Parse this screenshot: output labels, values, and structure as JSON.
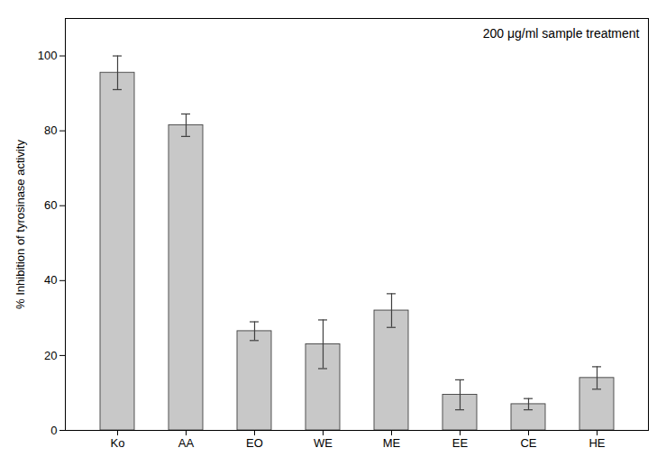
{
  "chart_data": {
    "type": "bar",
    "categories": [
      "Ko",
      "AA",
      "EO",
      "WE",
      "ME",
      "EE",
      "CE",
      "HE"
    ],
    "values": [
      95.5,
      81.5,
      26.5,
      23.0,
      32.0,
      9.5,
      7.0,
      14.0
    ],
    "errors": [
      4.5,
      3.0,
      2.5,
      6.5,
      4.5,
      4.0,
      1.5,
      3.0
    ],
    "color": "#c8c8c8",
    "ylabel": "% Inhibition of tyrosinase activity",
    "annotation": "200 μg/ml sample treatment",
    "ylim": [
      0,
      110
    ],
    "yticks": [
      0,
      20,
      40,
      60,
      80,
      100
    ]
  }
}
